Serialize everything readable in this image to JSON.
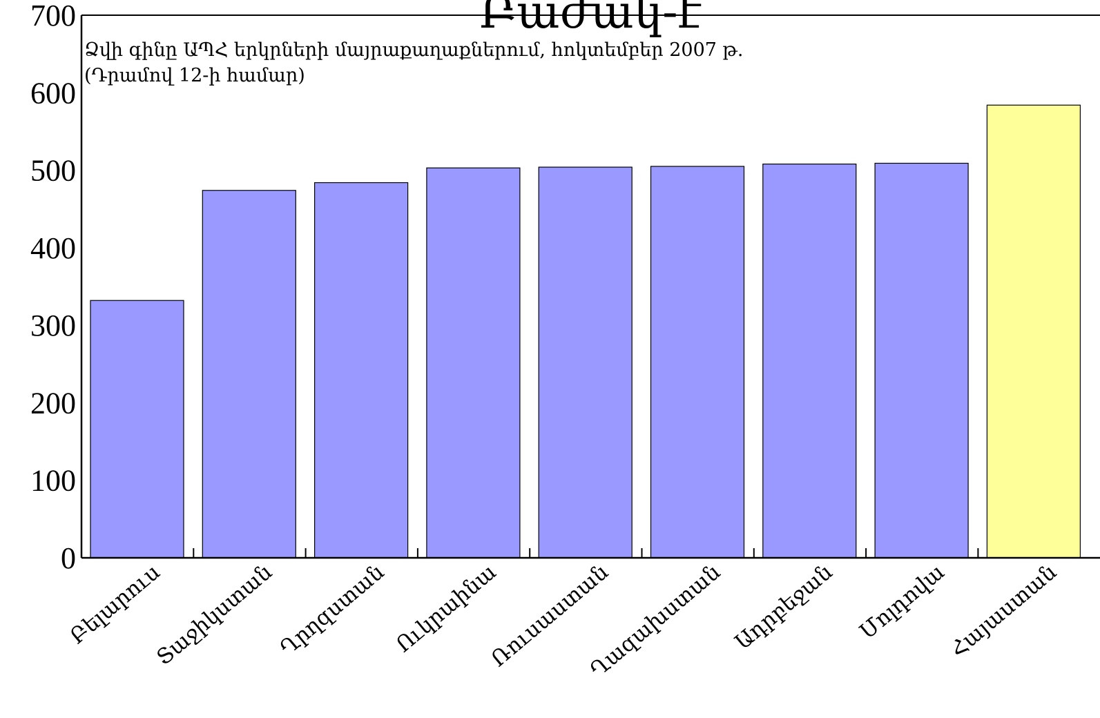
{
  "chart_data": {
    "type": "bar",
    "title": "Բաժակ-է",
    "subtitle_lines": [
      "Ձվի գինը ԱՊՀ երկրների մայրաքաղաքներում, հոկտեմբեր 2007 թ.",
      "(Դրամով 12-ի համար)"
    ],
    "categories": [
      "Բելարուս",
      "Տաջիկստան",
      "Ղրղզստան",
      "Ուկրաինա",
      "Ռուսաստան",
      "Ղազախստան",
      "Ադրբեջան",
      "Մոլդովա",
      "Հայաստան"
    ],
    "values": [
      332,
      474,
      484,
      503,
      504,
      505,
      508,
      509,
      584
    ],
    "ylim": [
      0,
      700
    ],
    "yticks": [
      0,
      100,
      200,
      300,
      400,
      500,
      600,
      700
    ],
    "xlabel": "",
    "ylabel": "",
    "grid": false,
    "legend": "none",
    "bar_color": "#9999ff",
    "highlight_color": "#ffff99",
    "highlight_index": 8
  }
}
